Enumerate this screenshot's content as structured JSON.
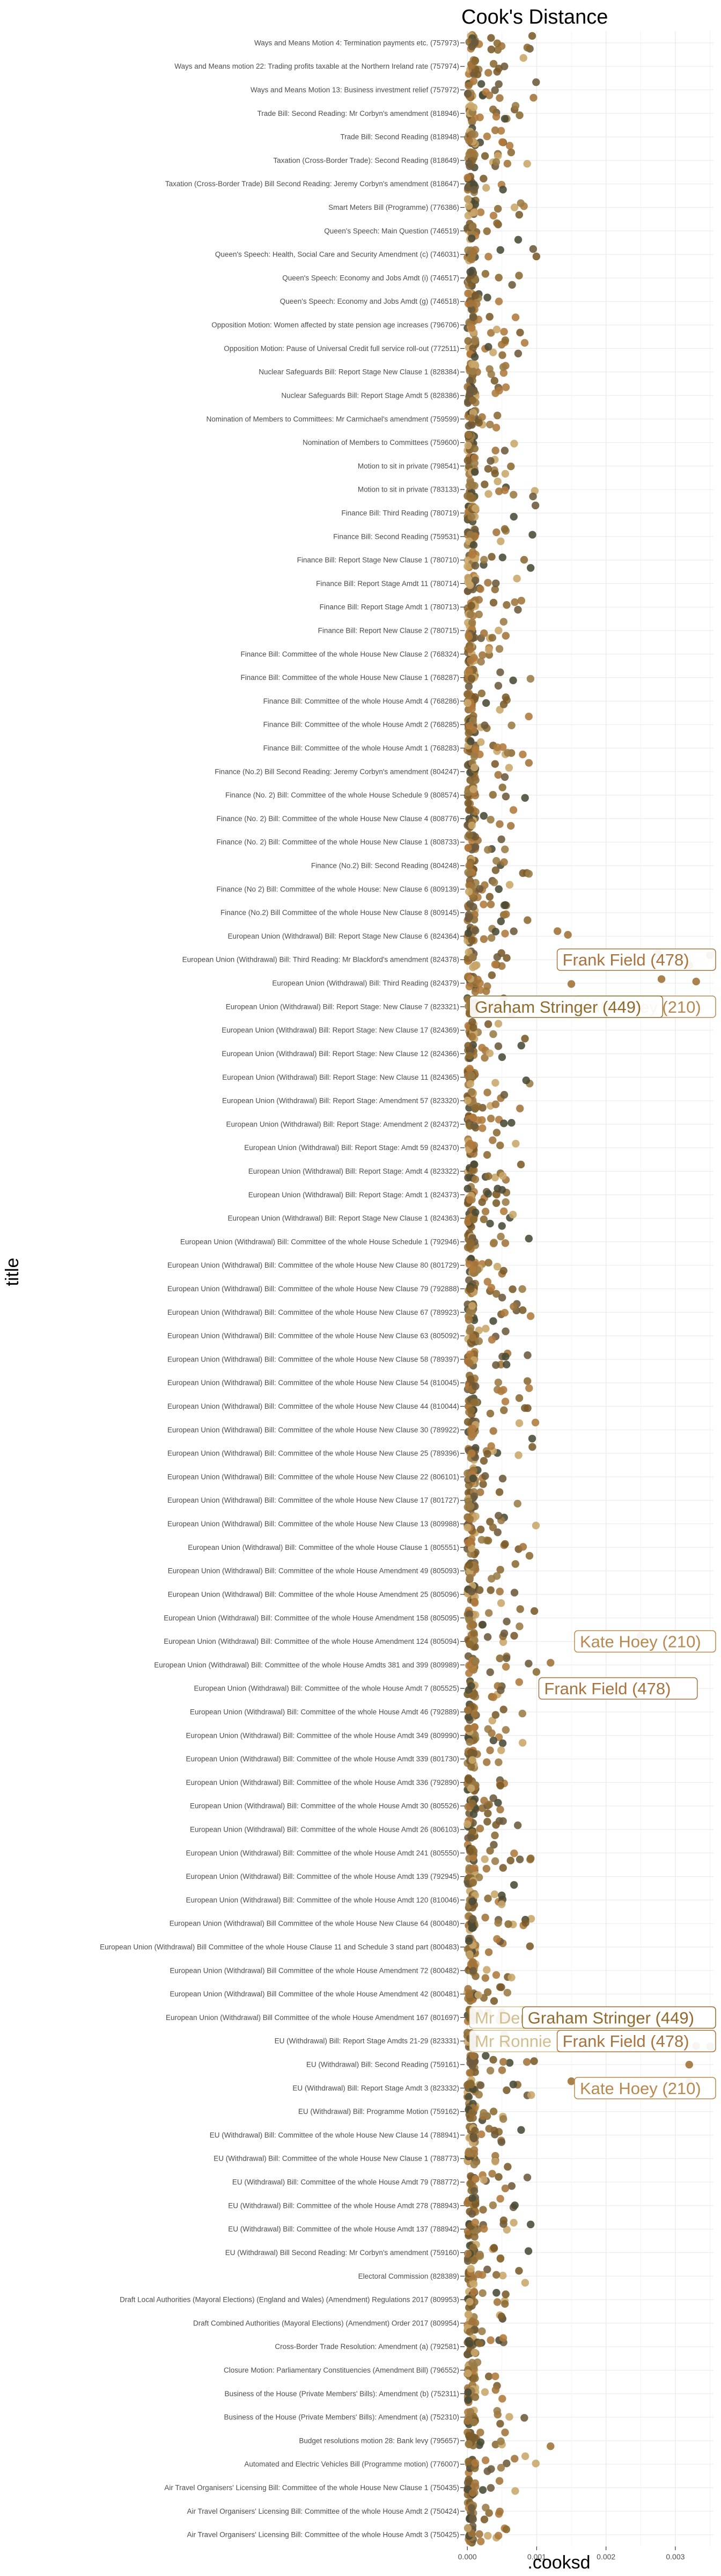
{
  "chart_data": {
    "type": "scatter",
    "title": "Cook's Distance",
    "xlabel": ".cooksd",
    "ylabel": "title",
    "xlim": [
      -4e-05,
      0.00355
    ],
    "x_ticks": [
      {
        "value": 0,
        "label": "0.000"
      },
      {
        "value": 0.001,
        "label": "0.001"
      },
      {
        "value": 0.002,
        "label": "0.002"
      },
      {
        "value": 0.003,
        "label": "0.003"
      }
    ],
    "grid": true,
    "legend": "none",
    "colors": [
      "#8b6a32",
      "#a0743a",
      "#b07a3c",
      "#7a5a2a",
      "#4a4a35",
      "#c8a66a",
      "#9a7b45",
      "#6b5a3c"
    ],
    "categories": [
      "Ways and Means Motion 4: Termination payments etc. (757973)",
      "Ways and Means motion 22: Trading profits taxable at the Northern Ireland rate (757974)",
      "Ways and Means Motion 13: Business investment relief (757972)",
      "Trade Bill: Second Reading: Mr Corbyn's amendment (818946)",
      "Trade Bill: Second Reading (818948)",
      "Taxation (Cross-Border Trade): Second Reading (818649)",
      "Taxation (Cross-Border Trade) Bill Second Reading: Jeremy Corbyn's amendment (818647)",
      "Smart Meters  Bill (Programme) (776386)",
      "Queen's Speech: Main Question (746519)",
      "Queen's Speech: Health, Social Care and Security Amendment (c) (746031)",
      "Queen's Speech: Economy and Jobs Amdt (i) (746517)",
      "Queen's Speech: Economy and Jobs Amdt (g) (746518)",
      "Opposition Motion: Women affected by state pension age increases (796706)",
      "Opposition Motion: Pause of Universal Credit full service roll-out (772511)",
      "Nuclear Safeguards Bill: Report Stage New Clause 1 (828384)",
      "Nuclear Safeguards Bill: Report Stage Amdt 5 (828386)",
      "Nomination of Members to Committees: Mr Carmichael's amendment (759599)",
      "Nomination of Members to Committees (759600)",
      "Motion to sit in private (798541)",
      "Motion to sit in private (783133)",
      "Finance Bill: Third Reading (780719)",
      "Finance Bill: Second Reading (759531)",
      "Finance Bill: Report Stage New Clause 1 (780710)",
      "Finance Bill: Report Stage Amdt 11 (780714)",
      "Finance Bill: Report Stage Amdt 1 (780713)",
      "Finance Bill: Report New Clause 2 (780715)",
      "Finance Bill: Committee of the whole House New Clause 2 (768324)",
      "Finance Bill: Committee of the whole House New Clause 1 (768287)",
      "Finance Bill: Committee of the whole House Amdt 4 (768286)",
      "Finance Bill: Committee of the whole House Amdt 2 (768285)",
      "Finance Bill: Committee of the whole House Amdt 1 (768283)",
      "Finance (No.2) Bill Second Reading: Jeremy Corbyn's amendment (804247)",
      "Finance (No. 2) Bill: Committee of the whole House Schedule 9 (808574)",
      "Finance (No. 2) Bill: Committee of the whole House New Clause 4 (808776)",
      "Finance (No. 2) Bill: Committee of the whole House New Clause 1 (808733)",
      "Finance (No.2) Bill: Second Reading (804248)",
      "Finance (No 2) Bill: Committee of the whole House: New Clause 6 (809139)",
      "Finance (No.2) Bill Committee of the whole House New Clause 8 (809145)",
      "European Union (Withdrawal) Bill: Report Stage New Clause 6  (824364)",
      "European Union (Withdrawal) Bill: Third Reading: Mr Blackford's amendment (824378)",
      "European Union (Withdrawal) Bill: Third Reading (824379)",
      "European Union (Withdrawal) Bill: Report Stage: New Clause 7 (823321)",
      "European Union (Withdrawal) Bill: Report Stage: New Clause 17 (824369)",
      "European Union (Withdrawal) Bill: Report Stage: New Clause 12 (824366)",
      "European Union (Withdrawal) Bill: Report Stage: New Clause 11 (824365)",
      "European Union (Withdrawal) Bill: Report Stage: Amendment 57 (823320)",
      "European Union (Withdrawal) Bill: Report Stage: Amendment 2 (824372)",
      "European Union (Withdrawal) Bill: Report Stage: Amdt 59 (824370)",
      "European Union (Withdrawal) Bill: Report Stage: Amdt 4 (823322)",
      "European Union (Withdrawal) Bill: Report Stage: Amdt 1 (824373)",
      "European Union (Withdrawal) Bill: Report Stage New Clause 1 (824363)",
      "European Union (Withdrawal) Bill: Committee of the whole House Schedule 1 (792946)",
      "European Union (Withdrawal) Bill: Committee of the whole House New Clause 80 (801729)",
      "European Union (Withdrawal) Bill: Committee of the whole House New Clause 79 (792888)",
      "European Union (Withdrawal) Bill: Committee of the whole House New Clause 67 (789923)",
      "European Union (Withdrawal) Bill: Committee of the whole House New Clause 63 (805092)",
      "European Union (Withdrawal) Bill: Committee of the whole House New Clause 58 (789397)",
      "European Union (Withdrawal) Bill: Committee of the whole House New Clause 54 (810045)",
      "European Union (Withdrawal) Bill: Committee of the whole House New Clause 44 (810044)",
      "European Union (Withdrawal) Bill: Committee of the whole House New Clause 30 (789922)",
      "European Union (Withdrawal) Bill: Committee of the whole House New Clause 25 (789396)",
      "European Union (Withdrawal) Bill: Committee of the whole House New Clause 22 (806101)",
      "European Union (Withdrawal) Bill: Committee of the whole House New Clause 17 (801727)",
      "European Union (Withdrawal) Bill: Committee of the whole House New Clause 13 (809988)",
      "European Union (Withdrawal) Bill: Committee of the whole House Clause 1 (805551)",
      "European Union (Withdrawal) Bill: Committee of the whole House Amendment 49 (805093)",
      "European Union (Withdrawal) Bill: Committee of the whole House Amendment 25 (805096)",
      "European Union (Withdrawal) Bill: Committee of the whole House Amendment 158 (805095)",
      "European Union (Withdrawal) Bill: Committee of the whole House Amendment 124 (805094)",
      "European Union (Withdrawal) Bill: Committee of the whole House Amdts 381 and 399 (809989)",
      "European Union (Withdrawal) Bill: Committee of the whole House Amdt 7 (805525)",
      "European Union (Withdrawal) Bill: Committee of the whole House Amdt 46 (792889)",
      "European Union (Withdrawal) Bill: Committee of the whole House Amdt 349 (809990)",
      "European Union (Withdrawal) Bill: Committee of the whole House Amdt 339 (801730)",
      "European Union (Withdrawal) Bill: Committee of the whole House Amdt 336 (792890)",
      "European Union (Withdrawal) Bill: Committee of the whole House Amdt 30  (805526)",
      "European Union (Withdrawal) Bill: Committee of the whole House Amdt 26 (806103)",
      "European Union (Withdrawal) Bill: Committee of the whole House Amdt 241 (805550)",
      "European Union (Withdrawal) Bill: Committee of the whole House Amdt 139 (792945)",
      "European Union (Withdrawal) Bill: Committee of the whole House Amdt 120 (810046)",
      "European Union (Withdrawal) Bill Committee of the whole House New Clause 64 (800480)",
      "European Union (Withdrawal) Bill Committee of the whole House Clause 11 and Schedule 3 stand part (800483)",
      "European Union (Withdrawal) Bill Committee of the whole House Amendment 72 (800482)",
      "European Union (Withdrawal) Bill Committee of the whole House Amendment 42 (800481)",
      "European Union (Withdrawal) Bill Committee of the whole House Amendment 167 (801697)",
      "EU (Withdrawal) Bill: Report Stage Amdts 21-29 (823331)",
      "EU (Withdrawal) Bill: Second Reading (759161)",
      "EU (Withdrawal) Bill: Report Stage Amdt 3 (823332)",
      "EU (Withdrawal) Bill: Programme Motion (759162)",
      "EU (Withdrawal) Bill: Committee of the whole House New Clause 14 (788941)",
      "EU (Withdrawal) Bill: Committee of the whole House New Clause 1 (788773)",
      "EU (Withdrawal) Bill: Committee of the whole House Amdt 79 (788772)",
      "EU (Withdrawal) Bill: Committee of the whole House Amdt 278 (788943)",
      "EU (Withdrawal) Bill: Committee of the whole House Amdt 137 (788942)",
      "EU (Withdrawal) Bill Second Reading: Mr Corbyn's amendment (759160)",
      "Electoral Commission (828389)",
      "Draft Local Authorities (Mayoral Elections) (England and Wales) (Amendment) Regulations 2017 (809953)",
      "Draft Combined Authorities (Mayoral Elections) (Amendment) Order 2017 (809954)",
      "Cross-Border Trade Resolution: Amendment (a) (792581)",
      "Closure Motion: Parliamentary Constituencies (Amendment Bill) (796552)",
      "Business of the House (Private Members' Bills): Amendment (b) (752311)",
      "Business of the House (Private Members' Bills): Amendment (a) (752310)",
      "Budget resolutions motion 28: Bank levy (795657)",
      "Automated and Electric Vehicles Bill (Programme motion) (776007)",
      "Air Travel Organisers' Licensing Bill: Committee of the whole House New Clause 1 (750435)",
      "Air Travel Organisers' Licensing Bill: Committee of the whole House Amdt 2 (750424)",
      "Air Travel Organisers' Licensing Bill: Committee of the whole House Amdt 3 (750425)"
    ],
    "outliers": [
      {
        "category": "European Union (Withdrawal) Bill: Report Stage New Clause 6  (824364)",
        "values": [
          0.0013,
          0.00145
        ]
      },
      {
        "category": "European Union (Withdrawal) Bill: Third Reading: Mr Blackford's amendment (824378)",
        "values": [
          0.0016,
          0.00275,
          0.0032,
          0.0035
        ]
      },
      {
        "category": "European Union (Withdrawal) Bill: Third Reading (824379)",
        "values": [
          0.0015,
          0.0028,
          0.0033
        ]
      },
      {
        "category": "European Union (Withdrawal) Bill: Report Stage: New Clause 7 (823321)",
        "values": [
          0.00042
        ]
      },
      {
        "category": "European Union (Withdrawal) Bill: Committee of the whole House Amendment 124 (805094)",
        "values": [
          0.0025
        ]
      },
      {
        "category": "European Union (Withdrawal) Bill: Committee of the whole House Amdts 381 and 399 (809989)",
        "values": [
          0.0012
        ]
      },
      {
        "category": "European Union (Withdrawal) Bill Committee of the whole House Amendment 167 (801697)",
        "values": [
          0.001
        ]
      },
      {
        "category": "EU (Withdrawal) Bill: Report Stage Amdts 21-29 (823331)",
        "values": [
          0.0033,
          0.0035
        ]
      },
      {
        "category": "EU (Withdrawal) Bill: Second Reading (759161)",
        "values": [
          0.0032
        ]
      },
      {
        "category": "EU (Withdrawal) Bill: Report Stage Amdt 3 (823332)",
        "values": [
          0.0015,
          0.0032
        ]
      },
      {
        "category": "Budget resolutions motion 28: Bank levy (795657)",
        "values": [
          0.0012
        ]
      }
    ],
    "annotations": [
      {
        "text": "Frank Field (478)",
        "category": "European Union (Withdrawal) Bill: Third Reading: Mr Blackford's amendment (824378)",
        "x": 0.0016,
        "color": "#a8733e"
      },
      {
        "text": "Kate Hoey (210)",
        "category": "European Union (Withdrawal) Bill: Report Stage: New Clause 7 (823321)",
        "x": 0.00155,
        "color": "#b9884f"
      },
      {
        "text": "Graham Stringer (449)",
        "category": "European Union (Withdrawal) Bill: Report Stage: New Clause 7 (823321)",
        "x": 0.0,
        "color": "#8f6c2e"
      },
      {
        "text": "Kate Hoey (210)",
        "category": "European Union (Withdrawal) Bill: Committee of the whole House Amendment 124 (805094)",
        "x": 0.0018,
        "color": "#b9884f"
      },
      {
        "text": "Frank Field (478)",
        "category": "European Union (Withdrawal) Bill: Committee of the whole House Amdt 7 (805525)",
        "x": 0.001,
        "color": "#a8733e"
      },
      {
        "text": "Mr Denn",
        "category": "European Union (Withdrawal) Bill Committee of the whole House Amendment 167 (801697)",
        "x": 0.0,
        "color": "#d2bd8c"
      },
      {
        "text": "Graham Stringer (449)",
        "category": "European Union (Withdrawal) Bill Committee of the whole House Amendment 167 (801697)",
        "x": 0.001,
        "color": "#8f6c2e"
      },
      {
        "text": "Mr Ronnie Ca",
        "category": "EU (Withdrawal) Bill: Report Stage Amdts 21-29 (823331)",
        "x": 0.0,
        "color": "#d2bd8c"
      },
      {
        "text": "Frank Field (478)",
        "category": "EU (Withdrawal) Bill: Report Stage Amdts 21-29 (823331)",
        "x": 0.0016,
        "color": "#a8733e"
      },
      {
        "text": "Kate Hoey (210)",
        "category": "EU (Withdrawal) Bill: Report Stage Amdt 3 (823332)",
        "x": 0.0016,
        "color": "#b9884f"
      }
    ]
  }
}
